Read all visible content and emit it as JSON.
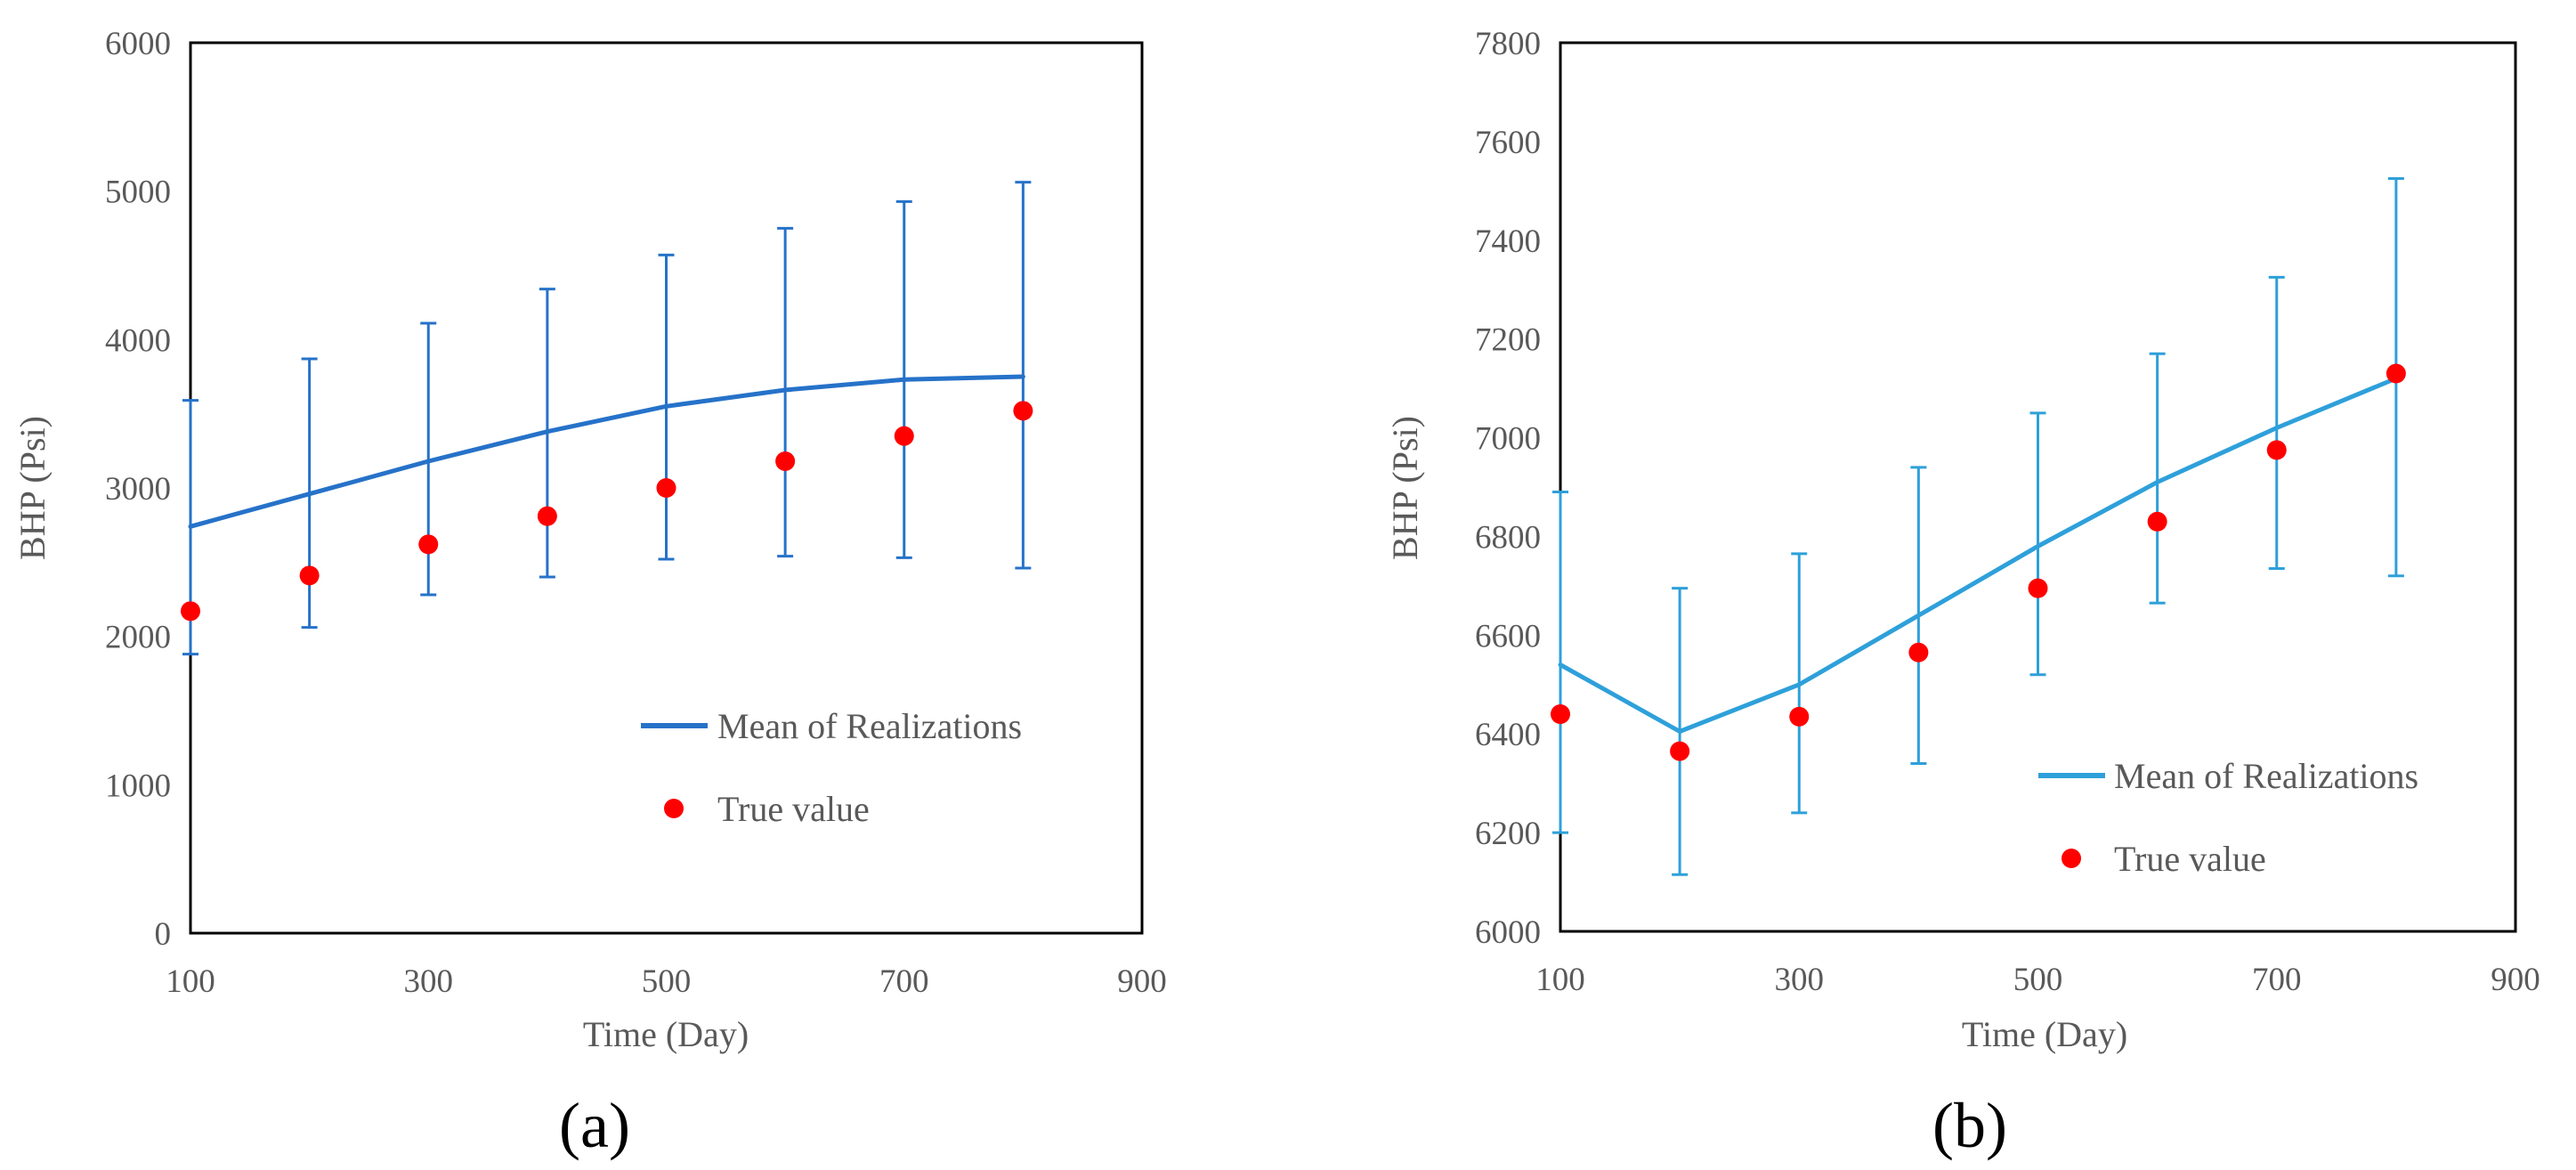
{
  "chart_data": [
    {
      "type": "line",
      "panel": "a",
      "xlabel": "Time (Day)",
      "ylabel": "BHP (Psi)",
      "xlim": [
        100,
        900
      ],
      "ylim": [
        0,
        6000
      ],
      "x_ticks": [
        100,
        300,
        500,
        700,
        900
      ],
      "y_ticks": [
        0,
        1000,
        2000,
        3000,
        4000,
        5000,
        6000
      ],
      "legend_position": "center-right",
      "series": [
        {
          "name": "Mean of Realizations",
          "kind": "line",
          "color": "#2672c9",
          "x": [
            100,
            200,
            300,
            400,
            500,
            600,
            700,
            800
          ],
          "y": [
            2740,
            2960,
            3180,
            3380,
            3550,
            3660,
            3730,
            3750
          ],
          "error_low": [
            1880,
            2060,
            2280,
            2400,
            2520,
            2540,
            2530,
            2460
          ],
          "error_high": [
            3590,
            3870,
            4110,
            4340,
            4570,
            4750,
            4930,
            5060
          ]
        },
        {
          "name": "True value",
          "kind": "scatter",
          "color": "#ff0000",
          "x": [
            100,
            200,
            300,
            400,
            500,
            600,
            700,
            800
          ],
          "y": [
            2170,
            2410,
            2620,
            2810,
            3000,
            3180,
            3350,
            3520
          ]
        }
      ]
    },
    {
      "type": "line",
      "panel": "b",
      "xlabel": "Time (Day)",
      "ylabel": "BHP (Psi)",
      "xlim": [
        100,
        900
      ],
      "ylim": [
        6000,
        7800
      ],
      "x_ticks": [
        100,
        300,
        500,
        700,
        900
      ],
      "y_ticks": [
        6000,
        6200,
        6400,
        6600,
        6800,
        7000,
        7200,
        7400,
        7600,
        7800
      ],
      "legend_position": "lower-right",
      "series": [
        {
          "name": "Mean of Realizations",
          "kind": "line",
          "color": "#2ea0da",
          "x": [
            100,
            200,
            300,
            400,
            500,
            600,
            700,
            800
          ],
          "y": [
            6540,
            6405,
            6500,
            6640,
            6780,
            6910,
            7020,
            7120
          ],
          "error_low": [
            6200,
            6115,
            6240,
            6340,
            6520,
            6665,
            6735,
            6720
          ],
          "error_high": [
            6890,
            6695,
            6765,
            6940,
            7050,
            7170,
            7325,
            7525
          ]
        },
        {
          "name": "True value",
          "kind": "scatter",
          "color": "#ff0000",
          "x": [
            100,
            200,
            300,
            400,
            500,
            600,
            700,
            800
          ],
          "y": [
            6440,
            6365,
            6435,
            6565,
            6695,
            6830,
            6975,
            7130
          ]
        }
      ]
    }
  ],
  "panel_labels": {
    "a": "(a)",
    "b": "(b)"
  }
}
